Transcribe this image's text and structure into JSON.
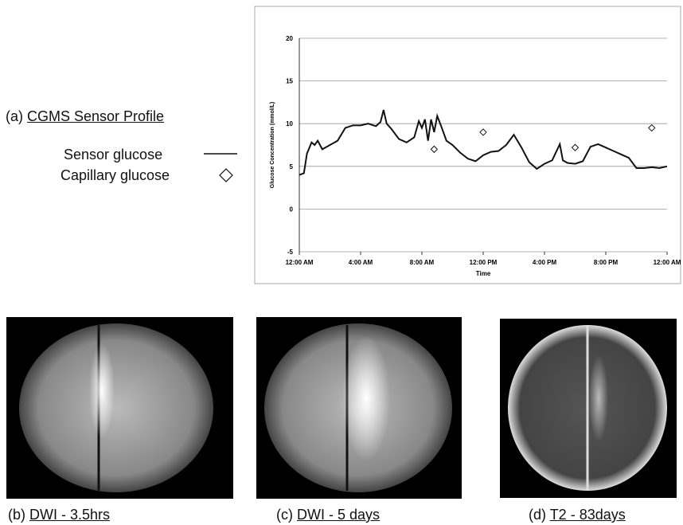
{
  "chart_data": {
    "type": "line",
    "xlabel": "Time",
    "ylabel": "Glucose Concentration (mmol/L)",
    "xlim": [
      0,
      24
    ],
    "xticks": [
      {
        "value": 0,
        "label": "12:00 AM"
      },
      {
        "value": 4,
        "label": "4:00 AM"
      },
      {
        "value": 8,
        "label": "8:00 AM"
      },
      {
        "value": 12,
        "label": "12:00 PM"
      },
      {
        "value": 16,
        "label": "4:00 PM"
      },
      {
        "value": 20,
        "label": "8:00 PM"
      },
      {
        "value": 24,
        "label": "12:00 AM"
      }
    ],
    "ylim": [
      -5,
      20
    ],
    "yticks": [
      -5,
      0,
      5,
      10,
      15,
      20
    ],
    "grid": true,
    "series": [
      {
        "name": "Sensor glucose",
        "type": "line",
        "color": "#111111",
        "x": [
          0,
          0.3,
          0.5,
          0.8,
          1.0,
          1.2,
          1.5,
          2.0,
          2.5,
          3.0,
          3.5,
          4.0,
          4.5,
          5.0,
          5.3,
          5.5,
          5.7,
          6.0,
          6.5,
          7.0,
          7.5,
          7.8,
          8.0,
          8.2,
          8.4,
          8.6,
          8.8,
          9.0,
          9.3,
          9.6,
          10.0,
          10.5,
          11.0,
          11.5,
          12.0,
          12.5,
          13.0,
          13.5,
          14.0,
          14.5,
          15.0,
          15.5,
          16.0,
          16.5,
          17.0,
          17.2,
          17.5,
          18.0,
          18.5,
          19.0,
          19.5,
          20.0,
          20.5,
          21.0,
          21.5,
          22.0,
          22.5,
          23.0,
          23.5,
          24.0
        ],
        "values": [
          4.0,
          4.2,
          6.5,
          7.8,
          7.5,
          8.0,
          7.0,
          7.5,
          8.0,
          9.5,
          9.8,
          9.8,
          10.0,
          9.7,
          10.2,
          11.6,
          10.0,
          9.4,
          8.2,
          7.8,
          8.4,
          10.3,
          9.5,
          10.5,
          8.0,
          10.5,
          9.0,
          10.9,
          9.5,
          8.0,
          7.5,
          6.6,
          5.9,
          5.6,
          6.3,
          6.7,
          6.8,
          7.5,
          8.7,
          7.2,
          5.5,
          4.7,
          5.3,
          5.7,
          7.6,
          5.7,
          5.4,
          5.3,
          5.6,
          7.3,
          7.6,
          7.2,
          6.8,
          6.4,
          6.0,
          4.8,
          4.8,
          4.9,
          4.8,
          5.0
        ]
      },
      {
        "name": "Capillary glucose",
        "type": "scatter",
        "color": "#111111",
        "x": [
          8.8,
          12.0,
          18.0,
          23.0
        ],
        "values": [
          7.0,
          9.0,
          7.2,
          9.5
        ]
      }
    ]
  },
  "panels": [
    {
      "letter": "(a)",
      "title": "CGMS Sensor Profile"
    },
    {
      "letter": "(b)",
      "title": "DWI - 3.5hrs"
    },
    {
      "letter": "(c)",
      "title": "DWI - 5 days"
    },
    {
      "letter": "(d)",
      "title": "T2 - 83days"
    }
  ]
}
